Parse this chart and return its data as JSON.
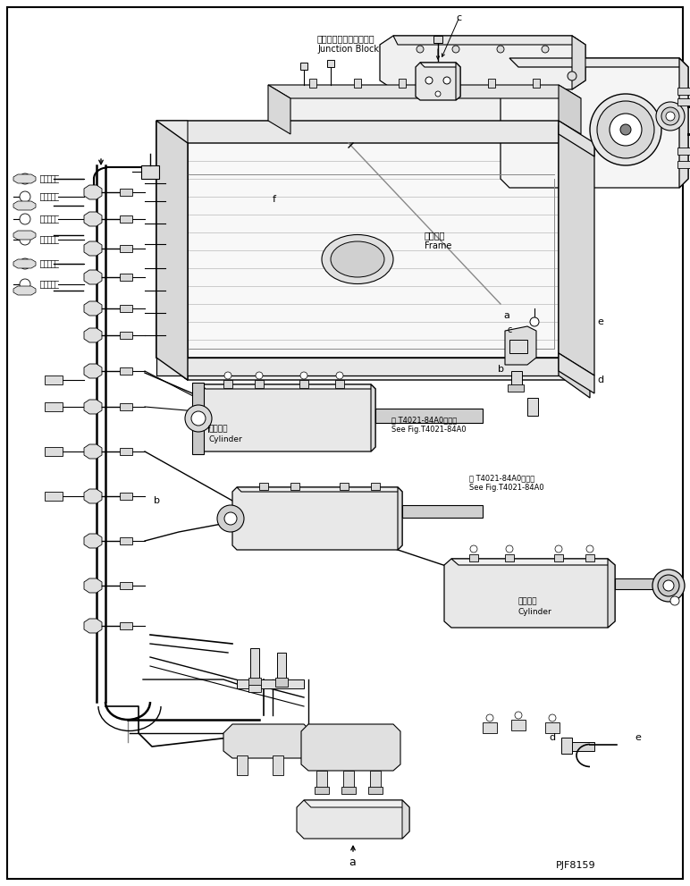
{
  "background_color": "#ffffff",
  "fig_width": 7.72,
  "fig_height": 9.91,
  "dpi": 100,
  "part_code": "PJF8159",
  "labels": {
    "junction_block_jp": "ジャンクションブロック",
    "junction_block_en": "Junction Block",
    "frame_jp": "フレーム",
    "frame_en": "Frame",
    "cylinder_jp1": "シリンダ",
    "cylinder_en1": "Cylinder",
    "cylinder_jp2": "シリンダ",
    "cylinder_en2": "Cylinder",
    "see_fig1_jp": "第 T4021-84A0図参照",
    "see_fig1_en": "See Fig.T4021-84A0",
    "see_fig2_jp": "第 T4021-84A0図参照",
    "see_fig2_en": "See Fig.T4021-84A0"
  }
}
